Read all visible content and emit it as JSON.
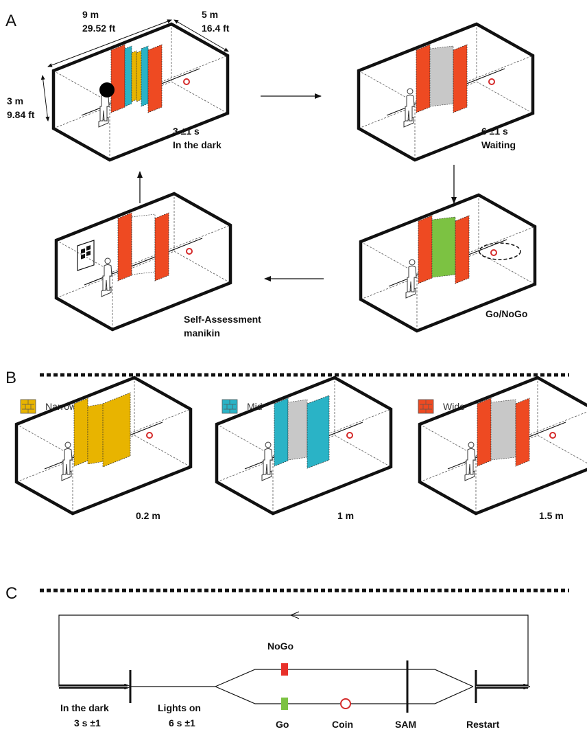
{
  "panels": {
    "a": "A",
    "b": "B",
    "c": "C"
  },
  "dimensions": {
    "length_m": "9 m",
    "length_ft": "29.52 ft",
    "width_m": "5 m",
    "width_ft": "16.4 ft",
    "height_m": "3 m",
    "height_ft": "9.84 ft"
  },
  "phases": {
    "dark_time": "3 ±1 s",
    "dark_label": "In the dark",
    "wait_time": "6 ±1 s",
    "wait_label": "Waiting",
    "gonogo_label": "Go/NoGo",
    "sam_line1": "Self-Assessment",
    "sam_line2": "manikin"
  },
  "conditions": [
    {
      "name": "Narrow",
      "distance": "0.2 m",
      "color": "#E8B400"
    },
    {
      "name": "Mid",
      "distance": "1 m",
      "color": "#2AB3C6"
    },
    {
      "name": "Wide",
      "distance": "1.5 m",
      "color": "#EE4A22"
    }
  ],
  "colors": {
    "red": "#EE4A22",
    "yellow": "#E8B400",
    "cyan": "#2AB3C6",
    "green": "#7CC242",
    "gray": "#C8C8C8",
    "nogo": "#E8302A",
    "coin": "#D42A2A"
  },
  "timeline": {
    "nogo": "NoGo",
    "dark_line1": "In the dark",
    "dark_line2": "3 s ±1",
    "lights_line1": "Lights on",
    "lights_line2": "6 s ±1",
    "go": "Go",
    "coin": "Coin",
    "sam": "SAM",
    "restart": "Restart"
  }
}
